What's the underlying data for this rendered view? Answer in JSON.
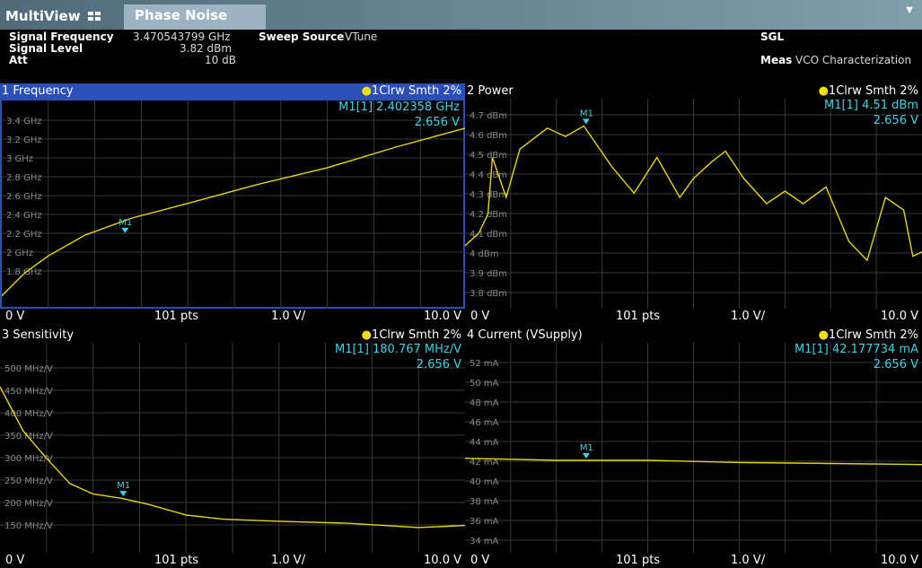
{
  "tabs": {
    "multiview": "MultiView",
    "phase_noise": "Phase Noise"
  },
  "info": {
    "sig_freq_label": "Signal Frequency",
    "sig_freq_value": "3.470543799 GHz",
    "sig_level_label": "Signal Level",
    "sig_level_value": "3.82 dBm",
    "att_label": "Att",
    "att_value": "10 dB",
    "sweep_label": "Sweep Source",
    "sweep_value": "VTune",
    "sgl": "SGL",
    "meas_label": "Meas",
    "meas_value": "VCO Characterization"
  },
  "colors": {
    "trace": "#e8d800",
    "marker": "#3ad4e8",
    "active": "#2a4fb8",
    "grid": "#3a3a3a"
  },
  "panels": [
    {
      "title": "1 Frequency",
      "trace": "1Clrw Smth 2%",
      "marker_value": "M1[1] 2.402358 GHz",
      "marker_x": "2.656 V",
      "foot": {
        "start": "0 V",
        "pts": "101 pts",
        "div": "1.0 V/",
        "stop": "10.0 V"
      },
      "yticks": [
        "3.4 GHz",
        "3.2 GHz",
        "3 GHz",
        "2.8 GHz",
        "2.6 GHz",
        "2.4 GHz",
        "2.2 GHz",
        "2 GHz",
        "1.8 GHz"
      ],
      "marker_label": "M1",
      "active": true
    },
    {
      "title": "2 Power",
      "trace": "1Clrw Smth 2%",
      "marker_value": "M1[1] 4.51 dBm",
      "marker_x": "2.656 V",
      "foot": {
        "start": "0 V",
        "pts": "101 pts",
        "div": "1.0 V/",
        "stop": "10.0 V"
      },
      "yticks": [
        "4.7 dBm",
        "4.6 dBm",
        "4.5 dBm",
        "4.4 dBm",
        "4.3 dBm",
        "4.2 dBm",
        "4.1 dBm",
        "4 dBm",
        "3.9 dBm",
        "3.8 dBm"
      ],
      "marker_label": "M1",
      "active": false
    },
    {
      "title": "3 Sensitivity",
      "trace": "1Clrw Smth 2%",
      "marker_value": "M1[1] 180.767 MHz/V",
      "marker_x": "2.656 V",
      "foot": {
        "start": "0 V",
        "pts": "101 pts",
        "div": "1.0 V/",
        "stop": "10.0 V"
      },
      "yticks": [
        "500 MHz/V",
        "450 MHz/V",
        "400 MHz/V",
        "350 MHz/V",
        "300 MHz/V",
        "250 MHz/V",
        "200 MHz/V",
        "150 MHz/V"
      ],
      "marker_label": "M1",
      "active": false
    },
    {
      "title": "4 Current (VSupply)",
      "trace": "1Clrw Smth 2%",
      "marker_value": "M1[1] 42.177734 mA",
      "marker_x": "2.656 V",
      "foot": {
        "start": "0 V",
        "pts": "101 pts",
        "div": "1.0 V/",
        "stop": "10.0 V"
      },
      "yticks": [
        "52 mA",
        "50 mA",
        "48 mA",
        "46 mA",
        "44 mA",
        "42 mA",
        "40 mA",
        "38 mA",
        "36 mA",
        "34 mA"
      ],
      "marker_label": "M1",
      "active": false
    }
  ]
}
